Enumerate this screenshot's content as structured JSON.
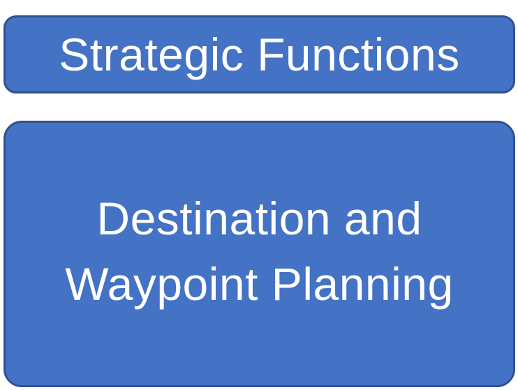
{
  "diagram": {
    "header": {
      "label": "Strategic Functions"
    },
    "main": {
      "lines": [
        "Destination and",
        "Waypoint Planning"
      ]
    }
  },
  "colors": {
    "box_fill": "#4472c4",
    "box_border": "#2f528f",
    "text": "#ffffff"
  }
}
